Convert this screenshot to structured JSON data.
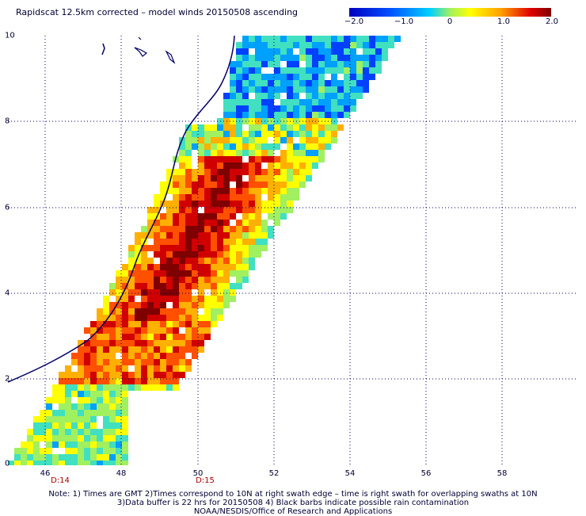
{
  "title": "Rapidscat 12.5km corrected – model winds 20150508 ascending",
  "colorbar": {
    "labels": [
      "−2.0",
      "−1.0",
      "0",
      "1.0",
      "2.0"
    ],
    "values": [
      -2.0,
      -1.0,
      0,
      1.0,
      2.0
    ],
    "colors": [
      "#0000c0",
      "#0040ff",
      "#00a0ff",
      "#40e0c0",
      "#a0f060",
      "#ffff00",
      "#ffb000",
      "#ff5000",
      "#d00000",
      "#800000"
    ]
  },
  "axes": {
    "x_ticks": [
      "46",
      "48",
      "50",
      "52",
      "54",
      "56",
      "58"
    ],
    "y_ticks": [
      "0",
      "2",
      "4",
      "6",
      "8",
      "10"
    ],
    "xlim": [
      45,
      59.8
    ],
    "ylim": [
      0,
      10
    ],
    "grid": "dotted"
  },
  "time_markers": [
    {
      "label": "D:14",
      "x": 46.4
    },
    {
      "label": "D:15",
      "x": 50.1
    }
  ],
  "notes": [
    "Note: 1) Times are GMT 2)Times correspond to 10N at right swath edge – time is right swath for overlapping swaths at 10N",
    "3)Data buffer is 22 hrs for 20150508 4) Black barbs indicate possible rain contamination",
    "NOAA/NESDIS/Office of Research and Applications"
  ]
}
